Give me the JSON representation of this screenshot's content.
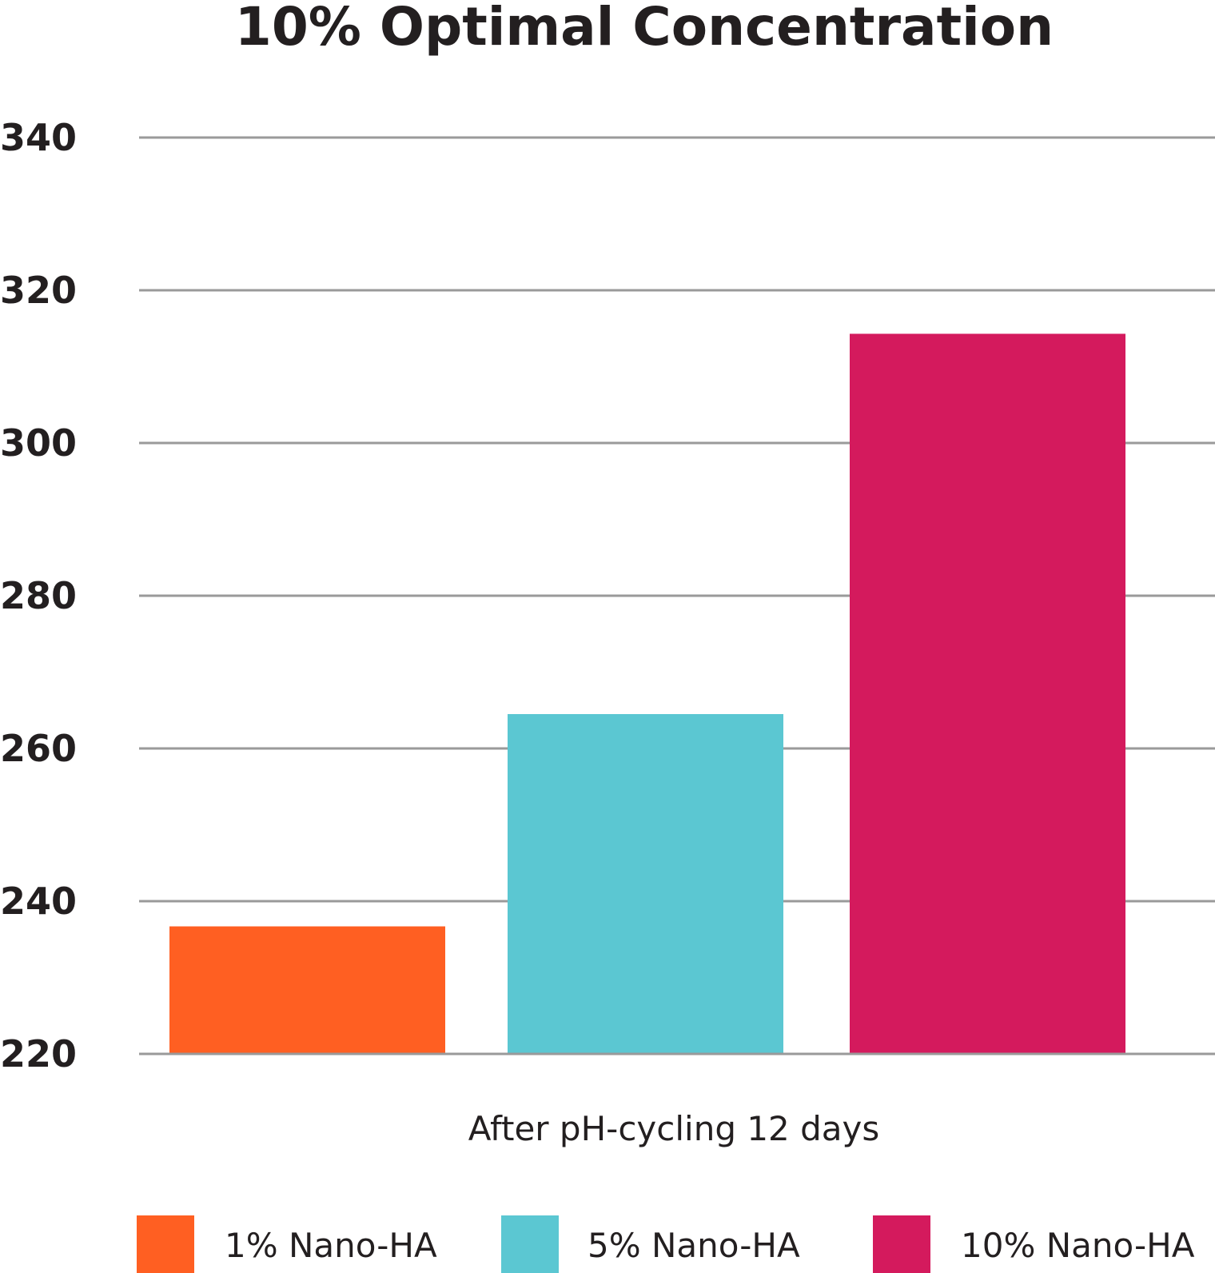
{
  "chart_data": {
    "type": "bar",
    "title": "10% Optimal Concentration",
    "categories": [
      "After pH-cycling 12 days"
    ],
    "series": [
      {
        "name": "1% Nano-HA",
        "values": [
          236.7
        ],
        "color": "#ff5f22"
      },
      {
        "name": "5% Nano-HA",
        "values": [
          264.5
        ],
        "color": "#5bc7d2"
      },
      {
        "name": "10% Nano-HA",
        "values": [
          314.3
        ],
        "color": "#d41a5d"
      }
    ],
    "yticks": [
      "220",
      "240",
      "260",
      "280",
      "300",
      "320",
      "340"
    ],
    "ylim": [
      220,
      340
    ],
    "xlabel": "",
    "ylabel": "",
    "grid": true,
    "legend": "bottom"
  }
}
